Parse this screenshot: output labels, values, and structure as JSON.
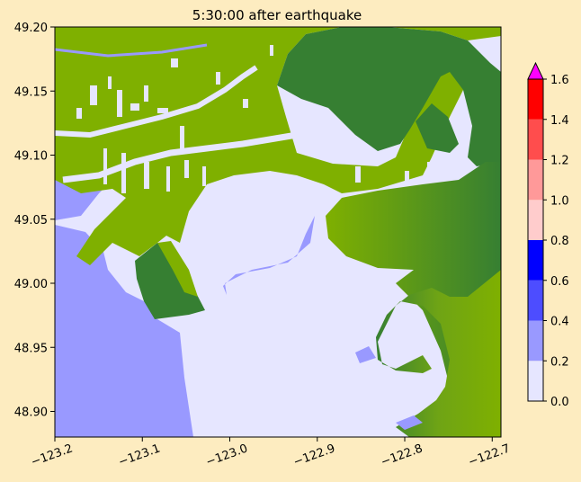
{
  "chart_data": {
    "type": "heatmap",
    "title": "5:30:00 after earthquake",
    "xlabel": "",
    "ylabel": "",
    "xlim": [
      -123.2,
      -122.69
    ],
    "ylim": [
      48.88,
      49.2
    ],
    "x_ticks": [
      -123.2,
      -123.1,
      -123.0,
      -122.9,
      -122.8,
      -122.7
    ],
    "x_tick_labels": [
      "−123.2",
      "−123.1",
      "−123.0",
      "−122.9",
      "−122.8",
      "−122.7"
    ],
    "y_ticks": [
      48.9,
      48.95,
      49.0,
      49.05,
      49.1,
      49.15,
      49.2
    ],
    "y_tick_labels": [
      "48.90",
      "48.95",
      "49.00",
      "49.05",
      "49.10",
      "49.15",
      "49.20"
    ],
    "grid": false,
    "colorbar": {
      "levels": [
        0.0,
        0.2,
        0.4,
        0.6,
        0.8,
        1.0,
        1.2,
        1.4,
        1.6
      ],
      "tick_labels": [
        "0.0",
        "0.2",
        "0.4",
        "0.6",
        "0.8",
        "1.0",
        "1.2",
        "1.4",
        "1.6"
      ],
      "colors": [
        "#e6e6ff",
        "#9999ff",
        "#4d4dff",
        "#0000ff",
        "#ffcccc",
        "#ff9999",
        "#ff4d4d",
        "#ff0000"
      ],
      "extend_color": "#ff00ff",
      "extend": "max"
    },
    "land_colors": {
      "lowland": "#7fb000",
      "highland": "#367f32"
    }
  }
}
